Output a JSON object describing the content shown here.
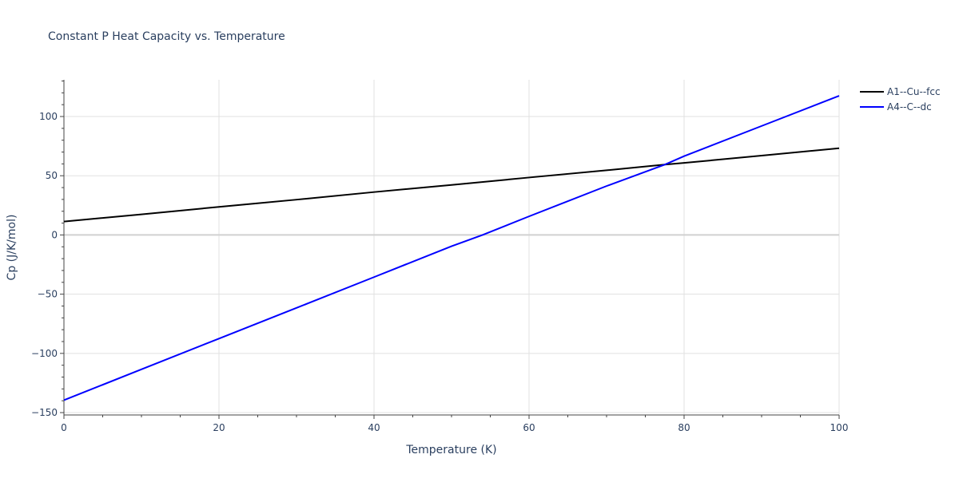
{
  "chart_data": {
    "type": "line",
    "title": "Constant P Heat Capacity vs. Temperature",
    "xlabel": "Temperature (K)",
    "ylabel": "Cp (J/K/mol)",
    "xlim": [
      0,
      100
    ],
    "ylim": [
      -152,
      131
    ],
    "xticks": [
      0,
      20,
      40,
      60,
      80,
      100
    ],
    "yticks": [
      -150,
      -100,
      -50,
      0,
      50,
      100
    ],
    "xtick_labels": [
      "0",
      "20",
      "40",
      "60",
      "80",
      "100"
    ],
    "ytick_labels": [
      "−150",
      "−100",
      "−50",
      "0",
      "50",
      "100"
    ],
    "grid": true,
    "legend_position": "top-right",
    "series": [
      {
        "name": "A1--Cu--fcc",
        "color": "#000000",
        "x": [
          0,
          10,
          20,
          30,
          40,
          50,
          60,
          70,
          77.5,
          80,
          90,
          100
        ],
        "y": [
          11.3,
          17.4,
          23.7,
          29.8,
          36.2,
          42.2,
          48.5,
          54.6,
          59.4,
          60.8,
          67.0,
          73.2
        ]
      },
      {
        "name": "A4--C--dc",
        "color": "#0000ff",
        "x": [
          0,
          10,
          20,
          30,
          40,
          50,
          54,
          60,
          70,
          77.5,
          80,
          90,
          100
        ],
        "y": [
          -139.5,
          -113.5,
          -87.5,
          -61.6,
          -35.6,
          -9.5,
          0.0,
          15.7,
          41.3,
          59.4,
          66.5,
          92.0,
          117.5
        ]
      }
    ]
  }
}
